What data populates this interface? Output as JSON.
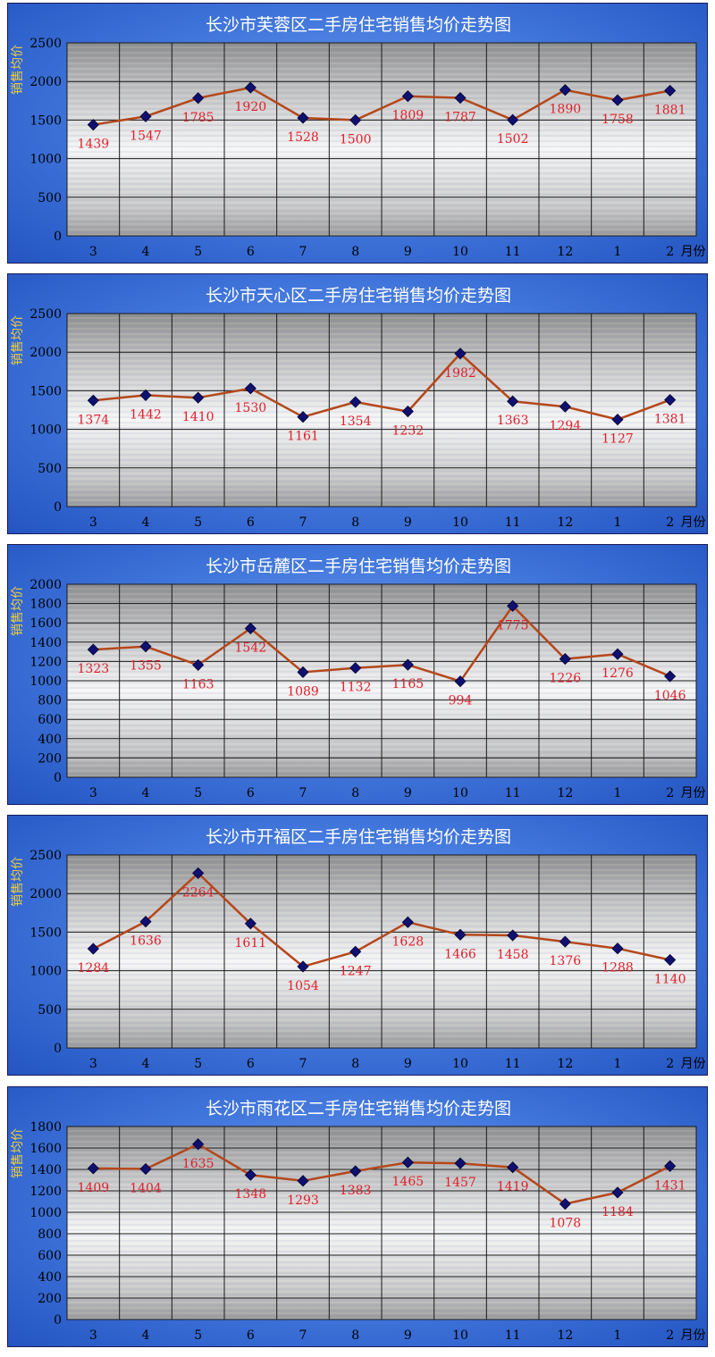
{
  "colors": {
    "line": "#b5471a",
    "marker": "#101070",
    "label": "#e0202a",
    "tick_text": "#000000",
    "title_text": "#ffffff",
    "ylabel_text": "#f0d040",
    "grid": "#1a1a1a"
  },
  "chart_data": [
    {
      "type": "line",
      "title": "长沙市芙蓉区二手房住宅销售均价走势图",
      "ylabel": "销售均价",
      "xunit": "月份",
      "categories": [
        "3",
        "4",
        "5",
        "6",
        "7",
        "8",
        "9",
        "10",
        "11",
        "12",
        "1",
        "2"
      ],
      "values": [
        1439,
        1547,
        1785,
        1920,
        1528,
        1500,
        1809,
        1787,
        1502,
        1890,
        1758,
        1881
      ],
      "ylim": [
        0,
        2500
      ],
      "yticks": [
        0,
        500,
        1000,
        1500,
        2000,
        2500
      ],
      "grid": true,
      "label_position": "below"
    },
    {
      "type": "line",
      "title": "长沙市天心区二手房住宅销售均价走势图",
      "ylabel": "销售均价",
      "xunit": "月份",
      "categories": [
        "3",
        "4",
        "5",
        "6",
        "7",
        "8",
        "9",
        "10",
        "11",
        "12",
        "1",
        "2"
      ],
      "values": [
        1374,
        1442,
        1410,
        1530,
        1161,
        1354,
        1232,
        1982,
        1363,
        1294,
        1127,
        1381
      ],
      "ylim": [
        0,
        2500
      ],
      "yticks": [
        0,
        500,
        1000,
        1500,
        2000,
        2500
      ],
      "grid": true,
      "label_position": "below"
    },
    {
      "type": "line",
      "title": "长沙市岳麓区二手房住宅销售均价走势图",
      "ylabel": "销售均价",
      "xunit": "月份",
      "categories": [
        "3",
        "4",
        "5",
        "6",
        "7",
        "8",
        "9",
        "10",
        "11",
        "12",
        "1",
        "2"
      ],
      "values": [
        1323,
        1355,
        1163,
        1542,
        1089,
        1132,
        1165,
        994,
        1775,
        1226,
        1276,
        1046
      ],
      "ylim": [
        0,
        2000
      ],
      "yticks": [
        0,
        200,
        400,
        600,
        800,
        1000,
        1200,
        1400,
        1600,
        1800,
        2000
      ],
      "grid": true,
      "label_position": "below"
    },
    {
      "type": "line",
      "title": "长沙市开福区二手房住宅销售均价走势图",
      "ylabel": "销售均价",
      "xunit": "月份",
      "categories": [
        "3",
        "4",
        "5",
        "6",
        "7",
        "8",
        "9",
        "10",
        "11",
        "12",
        "1",
        "2"
      ],
      "values": [
        1284,
        1636,
        2264,
        1611,
        1054,
        1247,
        1628,
        1466,
        1458,
        1376,
        1288,
        1140
      ],
      "ylim": [
        0,
        2500
      ],
      "yticks": [
        0,
        500,
        1000,
        1500,
        2000,
        2500
      ],
      "grid": true,
      "label_position": "below"
    },
    {
      "type": "line",
      "title": "长沙市雨花区二手房住宅销售均价走势图",
      "ylabel": "销售均价",
      "xunit": "月份",
      "categories": [
        "3",
        "4",
        "5",
        "6",
        "7",
        "8",
        "9",
        "10",
        "11",
        "12",
        "1",
        "2"
      ],
      "values": [
        1409,
        1404,
        1635,
        1348,
        1293,
        1383,
        1465,
        1457,
        1419,
        1078,
        1184,
        1431
      ],
      "ylim": [
        0,
        1800
      ],
      "yticks": [
        0,
        200,
        400,
        600,
        800,
        1000,
        1200,
        1400,
        1600,
        1800
      ],
      "grid": true,
      "label_position": "below"
    }
  ]
}
